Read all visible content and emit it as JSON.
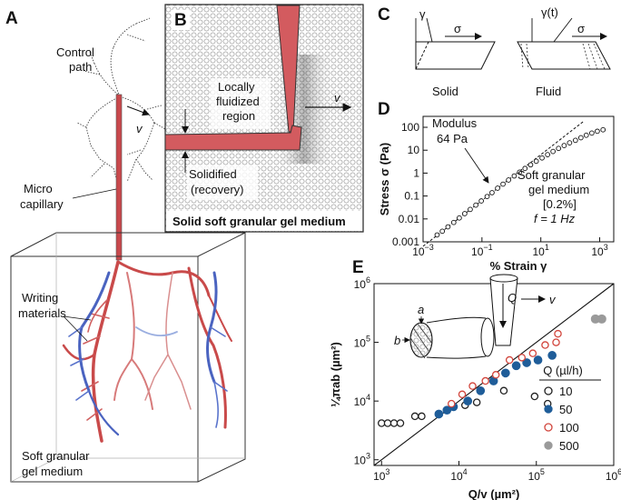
{
  "panelA": {
    "label": "A",
    "control_path": [
      "Control",
      "path"
    ],
    "v": "v",
    "micro_capillary": [
      "Micro",
      "capillary"
    ],
    "writing_materials": [
      "Writing",
      "materials"
    ],
    "medium": [
      "Soft granular",
      "gel medium"
    ]
  },
  "panelB": {
    "label": "B",
    "fluidized": [
      "Locally",
      "fluidized",
      "region"
    ],
    "v": "v",
    "solidified": [
      "Solidified",
      "(recovery)"
    ],
    "caption": "Solid soft granular gel medium"
  },
  "panelC": {
    "label": "C",
    "gamma": "γ",
    "gamma_t": "γ(t)",
    "sigma": "σ",
    "solid": "Solid",
    "fluid": "Fluid"
  },
  "panelD": {
    "label": "D",
    "modulus": [
      "Modulus",
      "64 Pa"
    ],
    "medium_note": [
      "Soft granular",
      "gel medium",
      "[0.2%]",
      "f = 1 Hz"
    ]
  },
  "panelE": {
    "label": "E",
    "a": "a",
    "b": "b",
    "Q": "Q",
    "v": "v",
    "legend_title": "Q (µl/h)"
  },
  "chart_data": [
    {
      "panel": "D",
      "type": "scatter",
      "xlabel": "% Strain γ",
      "ylabel": "Stress σ (Pa)",
      "xscale": "log",
      "yscale": "log",
      "xlim": [
        0.001,
        3000
      ],
      "ylim": [
        0.001,
        300
      ],
      "x_ticks": [
        "10^-3",
        "10^-1",
        "10^1",
        "10^3"
      ],
      "y_ticks": [
        "0.001",
        "0.01",
        "0.1",
        "1",
        "10",
        "100"
      ],
      "series": [
        {
          "marker": "open-circle",
          "x": [
            0.003,
            0.0045,
            0.007,
            0.011,
            0.017,
            0.026,
            0.04,
            0.062,
            0.095,
            0.15,
            0.22,
            0.34,
            0.52,
            0.8,
            1.25,
            1.9,
            2.9,
            4.5,
            7,
            11,
            17,
            26,
            40,
            62,
            95,
            150,
            230,
            350,
            540,
            830,
            1300
          ],
          "y": [
            0.002,
            0.0029,
            0.0045,
            0.007,
            0.011,
            0.017,
            0.026,
            0.04,
            0.061,
            0.095,
            0.14,
            0.22,
            0.33,
            0.5,
            0.75,
            1.1,
            1.6,
            2.3,
            3.3,
            4.6,
            6.4,
            8.8,
            12,
            16,
            21,
            27,
            35,
            45,
            56,
            67,
            78
          ]
        }
      ],
      "reference_line": {
        "style": "dashed",
        "slope_log": 1,
        "x": [
          0.001,
          300
        ],
        "y": [
          0.00064,
          192
        ]
      }
    },
    {
      "panel": "E",
      "type": "scatter",
      "xlabel": "Q/v (µm²)",
      "ylabel": "¼πab (µm²)",
      "xscale": "log",
      "yscale": "log",
      "xlim": [
        800,
        1000000
      ],
      "ylim": [
        800,
        1000000
      ],
      "x_ticks": [
        "10^3",
        "10^4",
        "10^5",
        "10^6"
      ],
      "y_ticks": [
        "10^3",
        "10^4",
        "10^5",
        "10^6"
      ],
      "reference_line": {
        "style": "solid",
        "x": [
          800,
          1000000
        ],
        "y": [
          800,
          1000000
        ]
      },
      "legend_title": "Q (µl/h)",
      "series": [
        {
          "name": "10",
          "marker": "open-black",
          "x": [
            1000,
            1200,
            1450,
            1750,
            2700,
            3300,
            12000,
            17000,
            38000,
            95000,
            140000
          ],
          "y": [
            4200,
            4200,
            4200,
            4200,
            5500,
            5500,
            8500,
            9500,
            15000,
            12000,
            9000
          ]
        },
        {
          "name": "50",
          "marker": "filled-blue",
          "x": [
            5500,
            7000,
            8500,
            13000,
            19000,
            28000,
            40000,
            55000,
            75000,
            105000,
            160000
          ],
          "y": [
            6000,
            7000,
            8000,
            10000,
            15000,
            22000,
            30000,
            40000,
            45000,
            50000,
            60000
          ]
        },
        {
          "name": "100",
          "marker": "open-red",
          "x": [
            8000,
            11000,
            15000,
            22000,
            30000,
            45000,
            65000,
            90000,
            130000,
            180000,
            190000
          ],
          "y": [
            9000,
            13000,
            18000,
            22000,
            28000,
            50000,
            55000,
            65000,
            90000,
            100000,
            140000
          ]
        },
        {
          "name": "500",
          "marker": "filled-grey",
          "x": [
            580000,
            700000
          ],
          "y": [
            250000,
            250000
          ]
        }
      ]
    }
  ]
}
